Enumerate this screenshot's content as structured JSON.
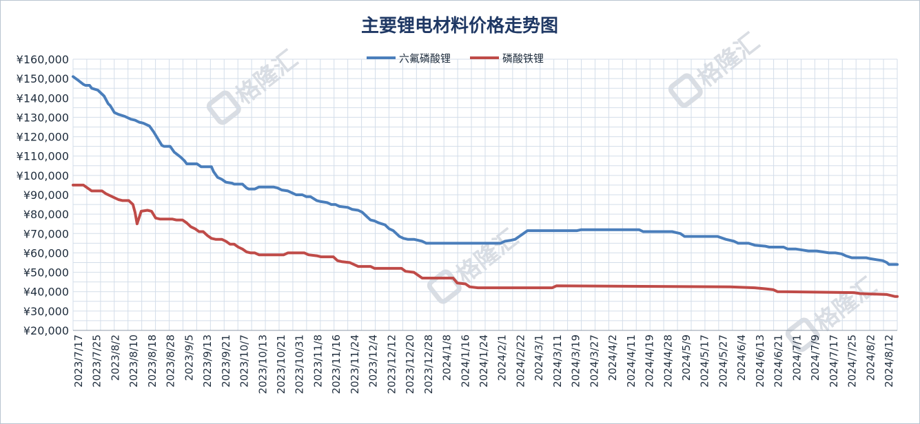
{
  "chart_data": {
    "type": "line",
    "title": "主要锂电材料价格走势图",
    "watermark": "格隆汇",
    "grid": true,
    "legend_position": "top-center",
    "ylim": [
      20000,
      160000
    ],
    "yticks": [
      20000,
      30000,
      40000,
      50000,
      60000,
      70000,
      80000,
      90000,
      100000,
      110000,
      120000,
      130000,
      140000,
      150000,
      160000
    ],
    "ytick_labels": [
      "¥20,000",
      "¥30,000",
      "¥40,000",
      "¥50,000",
      "¥60,000",
      "¥70,000",
      "¥80,000",
      "¥90,000",
      "¥100,000",
      "¥110,000",
      "¥120,000",
      "¥130,000",
      "¥140,000",
      "¥150,000",
      "¥160,000"
    ],
    "x_tick_labels": [
      "2023/7/17",
      "2023/7/25",
      "2023/8/2",
      "2023/8/10",
      "2023/8/18",
      "2023/8/28",
      "2023/9/5",
      "2023/9/13",
      "2023/9/21",
      "2023/10/7",
      "2023/10/13",
      "2023/10/21",
      "2023/10/31",
      "2023/11/8",
      "2023/11/16",
      "2023/11/24",
      "2023/12/4",
      "2023/12/12",
      "2023/12/20",
      "2023/12/28",
      "2024/1/8",
      "2024/1/16",
      "2024/1/24",
      "2024/2/1",
      "2024/2/22",
      "2024/3/1",
      "2024/3/11",
      "2024/3/19",
      "2024/3/27",
      "2024/4/2",
      "2024/4/11",
      "2024/4/19",
      "2024/4/28",
      "2024/5/9",
      "2024/5/17",
      "2024/5/27",
      "2024/6/4",
      "2024/6/13",
      "2024/6/21",
      "2024/7/1",
      "2024/7/9",
      "2024/7/17",
      "2024/7/25",
      "2024/8/2",
      "2024/8/12"
    ],
    "x_index_range": [
      0,
      222
    ],
    "series": [
      {
        "name": "六氟磷酸锂",
        "color": "#4a7ebb",
        "points": [
          [
            0,
            151000
          ],
          [
            2,
            149500
          ],
          [
            5,
            147000
          ],
          [
            6,
            146500
          ],
          [
            8,
            146500
          ],
          [
            9,
            145000
          ],
          [
            12,
            144000
          ],
          [
            15,
            141000
          ],
          [
            17,
            137000
          ],
          [
            18,
            136000
          ],
          [
            20,
            132500
          ],
          [
            22,
            131500
          ],
          [
            25,
            130500
          ],
          [
            28,
            129000
          ],
          [
            30,
            128500
          ],
          [
            32,
            127500
          ],
          [
            34,
            127000
          ],
          [
            36,
            126000
          ],
          [
            37,
            125500
          ],
          [
            39,
            122500
          ],
          [
            41,
            119000
          ],
          [
            43,
            115500
          ],
          [
            44,
            115000
          ],
          [
            47,
            115000
          ],
          [
            49,
            112000
          ],
          [
            52,
            109500
          ],
          [
            54,
            107500
          ],
          [
            55,
            106000
          ],
          [
            60,
            106000
          ],
          [
            62,
            104500
          ],
          [
            67,
            104500
          ],
          [
            68,
            102000
          ],
          [
            70,
            99000
          ],
          [
            72,
            98000
          ],
          [
            74,
            96500
          ],
          [
            77,
            96000
          ],
          [
            78,
            95500
          ],
          [
            82,
            95500
          ],
          [
            84,
            93500
          ],
          [
            85,
            93000
          ],
          [
            88,
            93000
          ],
          [
            90,
            94000
          ],
          [
            97,
            94000
          ],
          [
            99,
            93500
          ],
          [
            101,
            92500
          ],
          [
            104,
            92000
          ],
          [
            106,
            91000
          ],
          [
            108,
            90000
          ],
          [
            111,
            90000
          ],
          [
            113,
            89000
          ],
          [
            115,
            89000
          ],
          [
            118,
            87000
          ],
          [
            120,
            86500
          ],
          [
            123,
            86000
          ],
          [
            125,
            85000
          ],
          [
            127,
            85000
          ],
          [
            129,
            84000
          ],
          [
            133,
            83500
          ],
          [
            135,
            82500
          ],
          [
            138,
            82000
          ],
          [
            140,
            81000
          ],
          [
            142,
            79000
          ],
          [
            144,
            77000
          ],
          [
            146,
            76500
          ],
          [
            148,
            75500
          ],
          [
            151,
            74500
          ],
          [
            153,
            72500
          ],
          [
            155,
            71500
          ],
          [
            157,
            69500
          ],
          [
            158,
            68500
          ],
          [
            160,
            67500
          ],
          [
            162,
            67000
          ],
          [
            165,
            67000
          ],
          [
            167,
            66500
          ],
          [
            169,
            66000
          ],
          [
            171,
            65000
          ],
          [
            173,
            65000
          ],
          [
            207,
            65000
          ],
          [
            209,
            66000
          ],
          [
            212,
            66500
          ],
          [
            214,
            67000
          ],
          [
            216,
            68500
          ],
          [
            218,
            70000
          ],
          [
            220,
            71500
          ],
          [
            222,
            71500
          ],
          [
            244,
            71500
          ],
          [
            246,
            72000
          ],
          [
            274,
            72000
          ],
          [
            276,
            71000
          ],
          [
            290,
            71000
          ],
          [
            292,
            70500
          ],
          [
            294,
            70000
          ],
          [
            296,
            68500
          ],
          [
            312,
            68500
          ],
          [
            316,
            67000
          ],
          [
            320,
            66000
          ],
          [
            322,
            65000
          ],
          [
            327,
            65000
          ],
          [
            330,
            64000
          ],
          [
            335,
            63500
          ],
          [
            337,
            63000
          ],
          [
            344,
            63000
          ],
          [
            346,
            62000
          ],
          [
            350,
            62000
          ],
          [
            353,
            61500
          ],
          [
            356,
            61000
          ],
          [
            360,
            61000
          ],
          [
            363,
            60500
          ],
          [
            366,
            60000
          ],
          [
            369,
            60000
          ],
          [
            372,
            59500
          ],
          [
            374,
            58500
          ],
          [
            377,
            57500
          ],
          [
            384,
            57500
          ],
          [
            386,
            57000
          ],
          [
            389,
            56500
          ],
          [
            392,
            56000
          ],
          [
            394,
            55000
          ],
          [
            395,
            54000
          ],
          [
            399,
            54000
          ]
        ]
      },
      {
        "name": "磷酸铁锂",
        "color": "#bf4b48",
        "points": [
          [
            0,
            95000
          ],
          [
            5,
            95000
          ],
          [
            7,
            93500
          ],
          [
            9,
            92000
          ],
          [
            14,
            92000
          ],
          [
            16,
            90500
          ],
          [
            20,
            88500
          ],
          [
            22,
            87500
          ],
          [
            24,
            87000
          ],
          [
            27,
            87000
          ],
          [
            29,
            85000
          ],
          [
            30,
            81000
          ],
          [
            31,
            75000
          ],
          [
            33,
            81500
          ],
          [
            36,
            82000
          ],
          [
            38,
            81500
          ],
          [
            40,
            78000
          ],
          [
            42,
            77500
          ],
          [
            48,
            77500
          ],
          [
            50,
            77000
          ],
          [
            53,
            77000
          ],
          [
            55,
            75500
          ],
          [
            57,
            73500
          ],
          [
            59,
            72500
          ],
          [
            61,
            71000
          ],
          [
            63,
            71000
          ],
          [
            65,
            69000
          ],
          [
            67,
            67500
          ],
          [
            69,
            67000
          ],
          [
            72,
            67000
          ],
          [
            74,
            66000
          ],
          [
            76,
            64500
          ],
          [
            78,
            64500
          ],
          [
            80,
            63000
          ],
          [
            82,
            62000
          ],
          [
            84,
            60500
          ],
          [
            86,
            60000
          ],
          [
            88,
            60000
          ],
          [
            90,
            59000
          ],
          [
            102,
            59000
          ],
          [
            104,
            60000
          ],
          [
            112,
            60000
          ],
          [
            114,
            59000
          ],
          [
            118,
            58500
          ],
          [
            120,
            58000
          ],
          [
            126,
            58000
          ],
          [
            128,
            56000
          ],
          [
            130,
            55500
          ],
          [
            134,
            55000
          ],
          [
            136,
            54000
          ],
          [
            138,
            53000
          ],
          [
            144,
            53000
          ],
          [
            146,
            52000
          ],
          [
            159,
            52000
          ],
          [
            161,
            50500
          ],
          [
            165,
            50000
          ],
          [
            167,
            48500
          ],
          [
            169,
            47000
          ],
          [
            184,
            47000
          ],
          [
            186,
            44500
          ],
          [
            190,
            44000
          ],
          [
            192,
            42500
          ],
          [
            196,
            42000
          ],
          [
            232,
            42000
          ],
          [
            234,
            43000
          ],
          [
            318,
            42500
          ],
          [
            330,
            42000
          ],
          [
            335,
            41500
          ],
          [
            339,
            41000
          ],
          [
            341,
            40000
          ],
          [
            378,
            39500
          ],
          [
            381,
            39000
          ],
          [
            394,
            38500
          ],
          [
            398,
            37500
          ],
          [
            399,
            37500
          ]
        ]
      }
    ]
  }
}
